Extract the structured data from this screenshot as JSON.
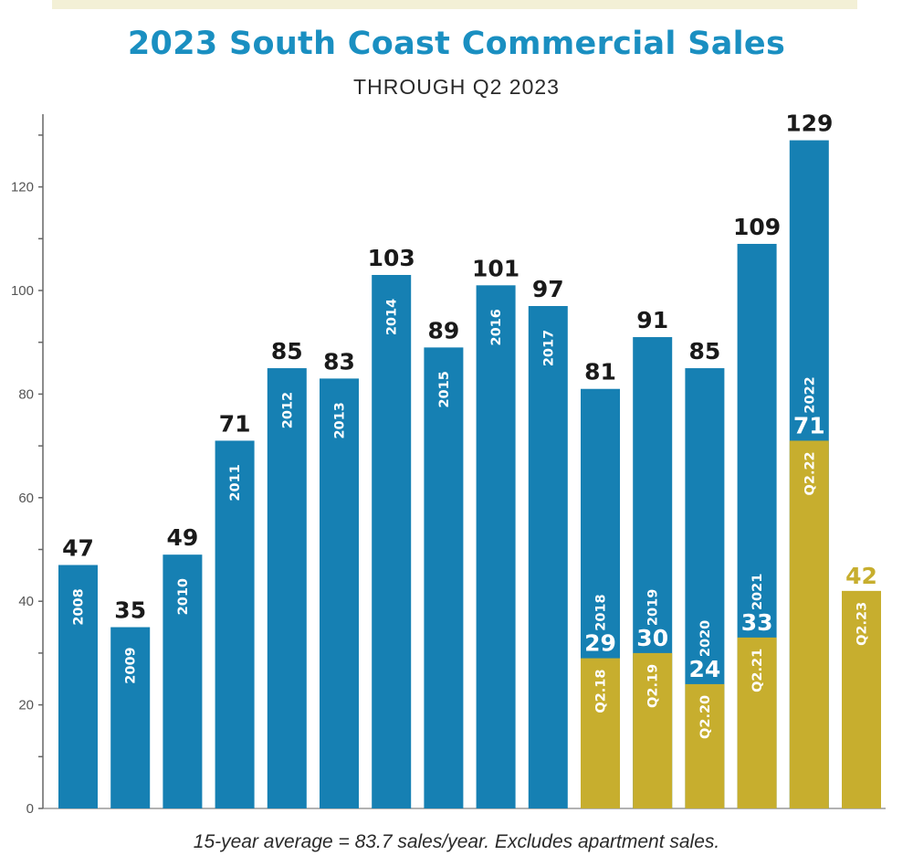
{
  "title": "2023 South Coast Commercial Sales",
  "subtitle": "THROUGH Q2 2023",
  "footnote": "15-year average = 83.7 sales/year.  Excludes apartment sales.",
  "colors": {
    "full_year": "#1680b3",
    "q2": "#c7ae2e",
    "label_dark": "#1a1a1a",
    "label_light": "#ffffff",
    "label_gold": "#c7ae2e",
    "band": "#f3f0d6"
  },
  "chart_data": {
    "type": "bar",
    "title": "2023 South Coast Commercial Sales",
    "subtitle": "THROUGH Q2 2023",
    "ylim": [
      0,
      130
    ],
    "yticks": [
      0,
      20,
      40,
      60,
      80,
      100,
      120
    ],
    "grid": false,
    "categories": [
      "2008",
      "2009",
      "2010",
      "2011",
      "2012",
      "2013",
      "2014",
      "2015",
      "2016",
      "2017",
      "2018",
      "2019",
      "2020",
      "2021",
      "2022",
      "2023"
    ],
    "series": [
      {
        "labels": [
          "2008",
          "2009",
          "2010",
          "2011",
          "2012",
          "2013",
          "2014",
          "2015",
          "2016",
          "2017",
          "2018",
          "2019",
          "2020",
          "2021",
          "2022",
          null
        ],
        "values": [
          47,
          35,
          49,
          71,
          85,
          83,
          103,
          89,
          101,
          97,
          81,
          91,
          85,
          109,
          129,
          null
        ]
      },
      {
        "labels": [
          null,
          null,
          null,
          null,
          null,
          null,
          null,
          null,
          null,
          null,
          "Q2.18",
          "Q2.19",
          "Q2.20",
          "Q2.21",
          "Q2.22",
          "Q2.23"
        ],
        "values": [
          null,
          null,
          null,
          null,
          null,
          null,
          null,
          null,
          null,
          null,
          29,
          30,
          24,
          33,
          71,
          42
        ]
      }
    ]
  }
}
